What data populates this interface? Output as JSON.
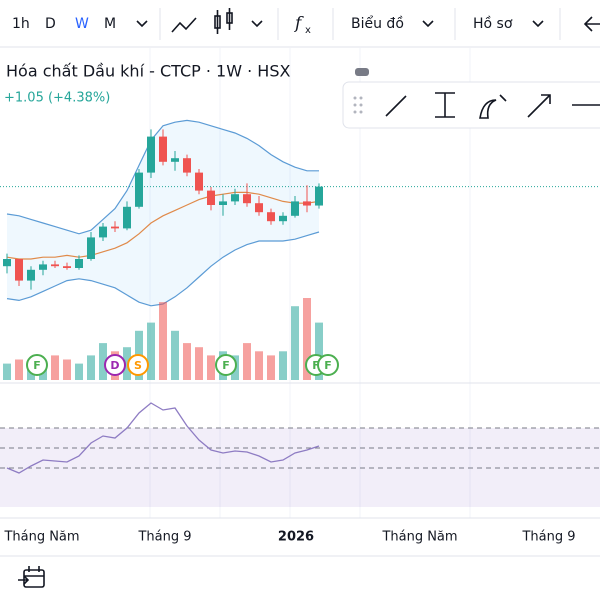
{
  "toolbar": {
    "intervals": [
      "1h",
      "D",
      "W",
      "M"
    ],
    "chart_menu": "Biểu đồ",
    "profile_menu": "Hồ sơ"
  },
  "header": {
    "title": "Hóa chất Dầu khí - CTCP · 1W · HSX",
    "change": "+1.05 (+4.38%)"
  },
  "chart": {
    "up_color": "#26a69a",
    "down_color": "#ef5350",
    "ylim": [
      18.5,
      28.5
    ],
    "candles": [
      {
        "o": 20.6,
        "h": 21.3,
        "l": 20.2,
        "c": 21.0
      },
      {
        "o": 21.0,
        "h": 21.0,
        "l": 19.5,
        "c": 19.8
      },
      {
        "o": 19.8,
        "h": 20.6,
        "l": 19.3,
        "c": 20.4
      },
      {
        "o": 20.4,
        "h": 20.9,
        "l": 20.1,
        "c": 20.7
      },
      {
        "o": 20.7,
        "h": 20.9,
        "l": 20.5,
        "c": 20.6
      },
      {
        "o": 20.6,
        "h": 20.8,
        "l": 20.4,
        "c": 20.5
      },
      {
        "o": 20.5,
        "h": 21.2,
        "l": 20.4,
        "c": 21.0
      },
      {
        "o": 21.0,
        "h": 22.5,
        "l": 20.9,
        "c": 22.2
      },
      {
        "o": 22.2,
        "h": 23.0,
        "l": 22.0,
        "c": 22.8
      },
      {
        "o": 22.8,
        "h": 23.1,
        "l": 22.5,
        "c": 22.7
      },
      {
        "o": 22.7,
        "h": 24.2,
        "l": 22.6,
        "c": 23.9
      },
      {
        "o": 23.9,
        "h": 26.0,
        "l": 23.8,
        "c": 25.8
      },
      {
        "o": 25.8,
        "h": 28.2,
        "l": 25.5,
        "c": 27.8
      },
      {
        "o": 27.8,
        "h": 28.2,
        "l": 26.2,
        "c": 26.4
      },
      {
        "o": 26.4,
        "h": 27.0,
        "l": 25.9,
        "c": 26.6
      },
      {
        "o": 26.6,
        "h": 26.8,
        "l": 25.6,
        "c": 25.8
      },
      {
        "o": 25.8,
        "h": 26.0,
        "l": 24.6,
        "c": 24.8
      },
      {
        "o": 24.8,
        "h": 25.0,
        "l": 23.7,
        "c": 24.0
      },
      {
        "o": 24.0,
        "h": 24.6,
        "l": 23.4,
        "c": 24.2
      },
      {
        "o": 24.2,
        "h": 24.9,
        "l": 24.0,
        "c": 24.6
      },
      {
        "o": 24.6,
        "h": 25.2,
        "l": 23.9,
        "c": 24.1
      },
      {
        "o": 24.1,
        "h": 24.5,
        "l": 23.4,
        "c": 23.6
      },
      {
        "o": 23.6,
        "h": 23.8,
        "l": 22.9,
        "c": 23.1
      },
      {
        "o": 23.1,
        "h": 23.6,
        "l": 22.9,
        "c": 23.4
      },
      {
        "o": 23.4,
        "h": 24.5,
        "l": 23.3,
        "c": 24.2
      },
      {
        "o": 24.2,
        "h": 25.1,
        "l": 23.6,
        "c": 23.97
      },
      {
        "o": 23.97,
        "h": 25.2,
        "l": 23.8,
        "c": 25.02
      }
    ],
    "lines": [
      {
        "color": "#5b9bd5",
        "values": [
          23.5,
          23.4,
          23.2,
          23.0,
          22.8,
          22.6,
          22.4,
          22.6,
          23.2,
          23.8,
          24.8,
          26.2,
          27.6,
          28.4,
          28.6,
          28.7,
          28.6,
          28.4,
          28.2,
          28.0,
          27.7,
          27.3,
          26.8,
          26.4,
          26.1,
          25.9,
          25.9
        ]
      },
      {
        "color": "#5b9bd5",
        "values": [
          18.8,
          18.7,
          18.9,
          19.2,
          19.5,
          19.8,
          19.9,
          19.8,
          19.6,
          19.4,
          19.0,
          18.6,
          18.4,
          18.5,
          18.9,
          19.4,
          20.0,
          20.6,
          21.1,
          21.5,
          21.8,
          22.0,
          22.0,
          22.0,
          22.1,
          22.3,
          22.5
        ]
      },
      {
        "color": "#e08a4a",
        "values": [
          21.1,
          21.0,
          21.0,
          21.1,
          21.1,
          21.2,
          21.1,
          21.2,
          21.4,
          21.6,
          21.9,
          22.4,
          23.0,
          23.4,
          23.7,
          24.0,
          24.3,
          24.5,
          24.6,
          24.7,
          24.7,
          24.6,
          24.4,
          24.2,
          24.1,
          24.1,
          24.2
        ]
      }
    ],
    "volume": {
      "ylim": [
        0,
        100
      ],
      "values": [
        20,
        25,
        15,
        20,
        30,
        25,
        20,
        30,
        45,
        35,
        40,
        60,
        70,
        95,
        60,
        45,
        40,
        30,
        35,
        30,
        45,
        35,
        30,
        35,
        90,
        100,
        70
      ]
    },
    "rsi": {
      "ylim": [
        -12,
        100
      ],
      "levels": [
        70,
        50,
        30
      ],
      "color": "#8e7cc3",
      "values": [
        30,
        25,
        32,
        38,
        37,
        36,
        42,
        55,
        62,
        60,
        70,
        85,
        95,
        88,
        90,
        72,
        58,
        48,
        45,
        47,
        46,
        42,
        36,
        38,
        45,
        48,
        52
      ]
    },
    "events": [
      "F",
      "D",
      "S",
      "F",
      "F",
      "F"
    ],
    "x_labels": [
      "Tháng Năm",
      "Tháng 9",
      "2026",
      "Tháng Năm",
      "Tháng 9"
    ]
  }
}
